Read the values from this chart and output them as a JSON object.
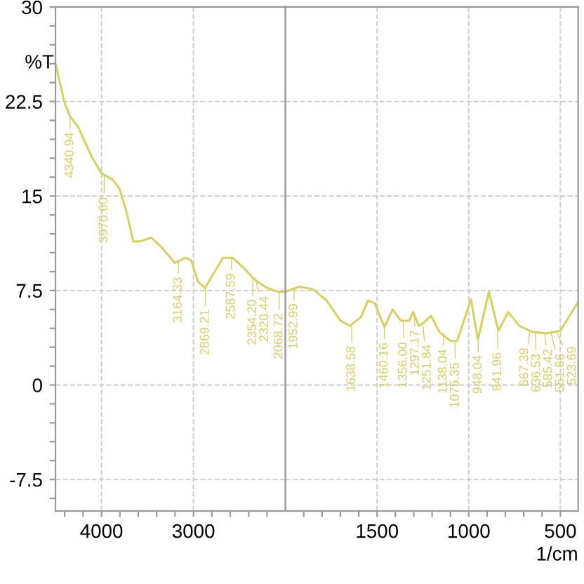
{
  "chart_data": [
    {
      "type": "line",
      "ylabel": "%T",
      "series": [
        {
          "color": "#d8d160",
          "x": [
            4500,
            4405,
            4340.94,
            4255,
            4105,
            4000,
            3880,
            3805,
            3730,
            3655,
            3580,
            3460,
            3355,
            3205,
            3085,
            3025,
            2950,
            2875,
            2785,
            2680,
            2575,
            2455,
            2365,
            2305,
            2200,
            2080,
            2000
          ],
          "values": [
            25.5,
            22.5,
            21.3,
            20.5,
            18.1,
            16.8,
            16.3,
            15.6,
            13.8,
            11.4,
            11.4,
            11.7,
            11.0,
            9.7,
            10.1,
            9.9,
            8.2,
            7.7,
            8.8,
            10.1,
            10.1,
            9.3,
            8.6,
            8.2,
            7.7,
            7.4,
            7.4
          ]
        }
      ],
      "annotations": [
        {
          "text": "4340.94",
          "x": 4340.94,
          "y": 21.3
        },
        {
          "text": "3970.60",
          "x": 3970.6,
          "y": 16.6
        },
        {
          "text": "3164.33",
          "x": 3164.33,
          "y": 9.8
        },
        {
          "text": "2869.21",
          "x": 2869.21,
          "y": 7.7
        },
        {
          "text": "2587.59",
          "x": 2587.59,
          "y": 10.1
        },
        {
          "text": "2354.20",
          "x": 2354.2,
          "y": 8.5
        },
        {
          "text": "2320.44",
          "x": 2320.44,
          "y": 8.3
        },
        {
          "text": "2068.72",
          "x": 2068.72,
          "y": 7.4
        }
      ],
      "xlim": [
        4500,
        2000
      ],
      "xticks": [
        4000,
        3000,
        {
          "value": 4400,
          "label": null
        },
        {
          "value": 4200,
          "label": null
        },
        {
          "value": 3800,
          "label": null
        },
        {
          "value": 3600,
          "label": null
        },
        {
          "value": 3400,
          "label": null
        },
        {
          "value": 3200,
          "label": null
        },
        {
          "value": 2800,
          "label": null
        },
        {
          "value": 2600,
          "label": null
        },
        {
          "value": 2400,
          "label": null
        },
        {
          "value": 2200,
          "label": null
        }
      ],
      "ylim": [
        -10,
        30
      ],
      "yticks": [
        30,
        22.5,
        15,
        7.5,
        0,
        -7.5,
        {
          "value": 28.5,
          "label": null
        },
        {
          "value": 27,
          "label": null
        },
        {
          "value": 25.5,
          "label": null
        },
        {
          "value": 24,
          "label": null
        },
        {
          "value": 21,
          "label": null
        },
        {
          "value": 19.5,
          "label": null
        },
        {
          "value": 18,
          "label": null
        },
        {
          "value": 16.5,
          "label": null
        },
        {
          "value": 13.5,
          "label": null
        },
        {
          "value": 12,
          "label": null
        },
        {
          "value": 10.5,
          "label": null
        },
        {
          "value": 9,
          "label": null
        },
        {
          "value": 6,
          "label": null
        },
        {
          "value": 4.5,
          "label": null
        },
        {
          "value": 3,
          "label": null
        },
        {
          "value": 1.5,
          "label": null
        },
        {
          "value": -1.5,
          "label": null
        },
        {
          "value": -3,
          "label": null
        },
        {
          "value": -4.5,
          "label": null
        },
        {
          "value": -6,
          "label": null
        },
        {
          "value": -9,
          "label": null
        }
      ],
      "grid": true,
      "marker": "none",
      "line_style": "solid"
    },
    {
      "type": "line",
      "xlabel": "1/cm",
      "series": [
        {
          "color": "#d8d160",
          "x": [
            2000,
            1925,
            1850,
            1775,
            1700,
            1648,
            1588,
            1550,
            1513,
            1460,
            1415,
            1370,
            1325,
            1303,
            1273,
            1250,
            1205,
            1160,
            1100,
            1063,
            988,
            950,
            890,
            838,
            785,
            725,
            650,
            575,
            500,
            403
          ],
          "values": [
            7.4,
            7.8,
            7.6,
            6.7,
            5.1,
            4.7,
            5.4,
            6.7,
            6.5,
            4.6,
            6.0,
            5.1,
            5.1,
            5.8,
            4.7,
            4.9,
            5.5,
            4.2,
            3.5,
            3.5,
            6.8,
            3.6,
            7.4,
            4.3,
            5.8,
            4.7,
            4.2,
            4.1,
            4.3,
            6.6
          ]
        }
      ],
      "annotations": [
        {
          "text": "1952.99",
          "x": 1952.99,
          "y": 7.7
        },
        {
          "text": "1638.58",
          "x": 1638.58,
          "y": 4.8
        },
        {
          "text": "1460.16",
          "x": 1460.16,
          "y": 4.6
        },
        {
          "text": "1356.00",
          "x": 1356.0,
          "y": 5.1
        },
        {
          "text": "1297.17",
          "x": 1297.17,
          "y": 5.6
        },
        {
          "text": "1251.84",
          "x": 1251.84,
          "y": 4.9
        },
        {
          "text": "1138.04",
          "x": 1138.04,
          "y": 4.1
        },
        {
          "text": "1075.35",
          "x": 1075.35,
          "y": 3.5
        },
        {
          "text": "948.04",
          "x": 948.04,
          "y": 3.6
        },
        {
          "text": "841.96",
          "x": 841.96,
          "y": 4.3
        },
        {
          "text": "667.39",
          "x": 667.39,
          "y": 4.2
        },
        {
          "text": "636.53",
          "x": 636.53,
          "y": 4.2
        },
        {
          "text": "585.42",
          "x": 585.42,
          "y": 4.1
        },
        {
          "text": "551.66",
          "x": 551.66,
          "y": 4.2
        },
        {
          "text": "523.69",
          "x": 523.69,
          "y": 4.3
        }
      ],
      "xlim": [
        2000,
        403
      ],
      "xticks": [
        1500,
        1000,
        500,
        {
          "value": 1900,
          "label": null
        },
        {
          "value": 1800,
          "label": null
        },
        {
          "value": 1700,
          "label": null
        },
        {
          "value": 1600,
          "label": null
        },
        {
          "value": 1400,
          "label": null
        },
        {
          "value": 1300,
          "label": null
        },
        {
          "value": 1200,
          "label": null
        },
        {
          "value": 1100,
          "label": null
        },
        {
          "value": 900,
          "label": null
        },
        {
          "value": 800,
          "label": null
        },
        {
          "value": 700,
          "label": null
        },
        {
          "value": 600,
          "label": null
        }
      ],
      "ylim": [
        -10,
        30
      ],
      "yticks": [
        30,
        22.5,
        15,
        7.5,
        0,
        -7.5
      ],
      "tick_labels": "x",
      "grid": true,
      "marker": "none",
      "line_style": "solid"
    }
  ]
}
